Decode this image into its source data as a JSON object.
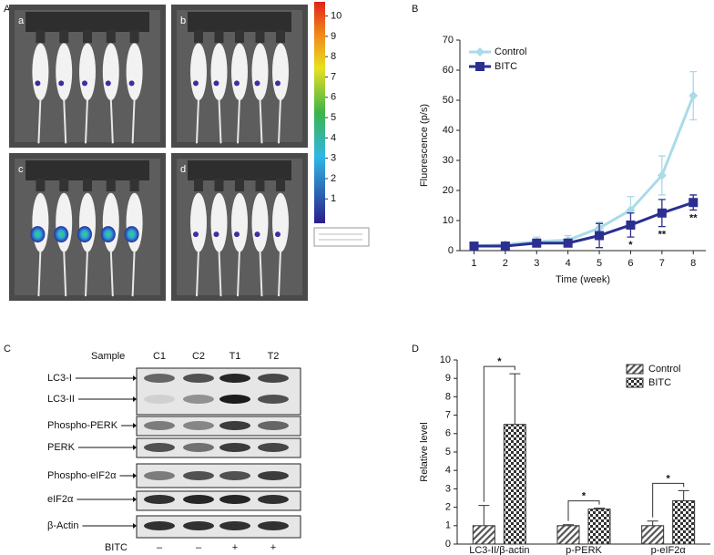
{
  "panel_labels": [
    "A",
    "B",
    "C",
    "D"
  ],
  "imaging": {
    "image_labels": [
      "a",
      "b",
      "c",
      "d"
    ],
    "colorbar": {
      "lim": [
        -0.2,
        10.7
      ],
      "ticks": [
        1,
        2,
        3,
        4,
        5,
        6,
        7,
        8,
        9,
        10
      ]
    }
  },
  "blot": {
    "sample_header": "Sample",
    "samples": [
      "C1",
      "C2",
      "T1",
      "T2"
    ],
    "rows": [
      "LC3-I",
      "LC3-II",
      "Phospho-PERK",
      "PERK",
      "Phospho-eIF2α",
      "eIF2α",
      "β-Actin"
    ],
    "treatment": {
      "label": "BITC",
      "values": [
        "–",
        "–",
        "+",
        "+"
      ]
    }
  },
  "chart_data": [
    {
      "type": "line",
      "xlabel": "Time (week)",
      "ylabel": "Fluorescence (p/s)",
      "x": [
        1,
        2,
        3,
        4,
        5,
        6,
        7,
        8
      ],
      "xlim": [
        0.55,
        8.4
      ],
      "xticks": [
        1,
        2,
        3,
        4,
        5,
        6,
        7,
        8
      ],
      "ylim": [
        0,
        70
      ],
      "yticks": [
        0,
        10,
        20,
        30,
        40,
        50,
        60,
        70
      ],
      "legend": "upper left",
      "series": [
        {
          "name": "Control",
          "color": "#a9dbe9",
          "marker": "diamond",
          "values": [
            1.5,
            2,
            3,
            3.5,
            7.5,
            13.5,
            25,
            51.5
          ],
          "errors": [
            0.5,
            0.5,
            1.5,
            1.5,
            2,
            4.5,
            6.5,
            8
          ]
        },
        {
          "name": "BITC",
          "color": "#2b2f8f",
          "marker": "square",
          "values": [
            1.5,
            1.5,
            2.5,
            2.5,
            5,
            8.5,
            12.5,
            16
          ],
          "errors": [
            0.5,
            0.5,
            1,
            1,
            4,
            4,
            4.5,
            2.5
          ]
        }
      ],
      "annotations": [
        {
          "text": "*",
          "x": 6
        },
        {
          "text": "**",
          "x": 7
        },
        {
          "text": "**",
          "x": 8
        }
      ]
    },
    {
      "type": "bar",
      "ylabel": "Relative level",
      "categories": [
        "LC3-II/β-actin",
        "p-PERK",
        "p-eIF2α"
      ],
      "ylim": [
        0,
        10
      ],
      "yticks": [
        0,
        1,
        2,
        3,
        4,
        5,
        6,
        7,
        8,
        9,
        10
      ],
      "legend": "upper right",
      "series": [
        {
          "name": "Control",
          "pattern": "hatch",
          "values": [
            1,
            1,
            1
          ],
          "errors": [
            1.1,
            0.05,
            0.25
          ]
        },
        {
          "name": "BITC",
          "pattern": "checker",
          "values": [
            6.5,
            1.9,
            2.35
          ],
          "errors": [
            2.75,
            0.05,
            0.55
          ]
        }
      ],
      "annotations": [
        {
          "text": "*",
          "category": 0
        },
        {
          "text": "*",
          "category": 1
        },
        {
          "text": "*",
          "category": 2
        }
      ]
    }
  ]
}
